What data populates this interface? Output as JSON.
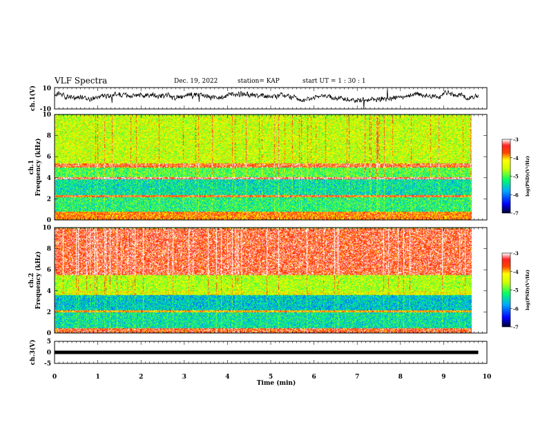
{
  "header": {
    "title": "VLF Spectra",
    "date": "Dec. 19, 2022",
    "station": "station= KAP",
    "start": "start  UT =   1 : 30 : 1"
  },
  "colors": {
    "spectrogram_scale": [
      "#000033",
      "#0000ff",
      "#00aaff",
      "#00ff66",
      "#ccff00",
      "#ffff00",
      "#ff4400",
      "#ff2222",
      "#ffffff"
    ],
    "trace": "#000000"
  },
  "chart_data": [
    {
      "type": "line",
      "panel": "ch1-waveform",
      "ylabel": "ch.1(V)",
      "ylim": [
        -10,
        10
      ],
      "y_ticks": [
        "10",
        "-10"
      ],
      "x_range_min": [
        0,
        9.8
      ],
      "description_values": {
        "typical_level_V": 2,
        "noise_amplitude_V": 4
      }
    },
    {
      "type": "heatmap",
      "panel": "ch1-spectrogram",
      "ylabel": "Frequency (kHz)",
      "ylabel_prefix": "ch.1",
      "y_ticks": [
        "0",
        "2",
        "4",
        "6",
        "8",
        "10"
      ],
      "ylim_kHz": [
        0,
        10
      ],
      "x_range_min": [
        0,
        9.8
      ],
      "colorbar": {
        "label": "log(PSD)(V²/Hz)",
        "ticks": [
          "-3",
          "-4",
          "-5",
          "-6",
          "-7"
        ],
        "range": [
          -7,
          -3
        ]
      },
      "bands": [
        {
          "f_kHz": [
            0,
            0.8
          ],
          "level": -3.8
        },
        {
          "f_kHz": [
            0.8,
            2.2
          ],
          "level": -5.2
        },
        {
          "f_kHz": [
            2.2,
            2.4
          ],
          "level": -3.6
        },
        {
          "f_kHz": [
            2.4,
            3.9
          ],
          "level": -5.4
        },
        {
          "f_kHz": [
            3.9,
            4.1
          ],
          "level": -3.2
        },
        {
          "f_kHz": [
            4.1,
            5.0
          ],
          "level": -5.0
        },
        {
          "f_kHz": [
            5.0,
            5.4
          ],
          "level": -3.5
        },
        {
          "f_kHz": [
            5.4,
            10
          ],
          "level": -4.5
        }
      ]
    },
    {
      "type": "heatmap",
      "panel": "ch2-spectrogram",
      "ylabel": "Frequency (kHz)",
      "ylabel_prefix": "ch.2",
      "y_ticks": [
        "0",
        "2",
        "4",
        "6",
        "8",
        "10"
      ],
      "ylim_kHz": [
        0,
        10
      ],
      "x_range_min": [
        0,
        9.8
      ],
      "colorbar": {
        "label": "log(PSD)(V²/Hz)",
        "ticks": [
          "-3",
          "-4",
          "-5",
          "-6",
          "-7"
        ],
        "range": [
          -7,
          -3
        ]
      },
      "bands": [
        {
          "f_kHz": [
            0,
            0.5
          ],
          "level": -3.5
        },
        {
          "f_kHz": [
            0.5,
            2.0
          ],
          "level": -5.4
        },
        {
          "f_kHz": [
            2.0,
            2.2
          ],
          "level": -4.0
        },
        {
          "f_kHz": [
            2.2,
            3.6
          ],
          "level": -5.6
        },
        {
          "f_kHz": [
            3.6,
            4.0
          ],
          "level": -4.4
        },
        {
          "f_kHz": [
            4.0,
            5.5
          ],
          "level": -4.6
        },
        {
          "f_kHz": [
            5.5,
            10
          ],
          "level": -3.4
        }
      ]
    },
    {
      "type": "line",
      "panel": "ch3-waveform",
      "ylabel": "ch.3(V)",
      "ylim": [
        -5,
        5
      ],
      "y_ticks": [
        "5",
        "0",
        "-5"
      ],
      "x_range_min": [
        0,
        9.8
      ],
      "description_values": {
        "typical_level_V": 0
      }
    }
  ],
  "x_axis": {
    "label": "Time (min)",
    "ticks": [
      "0",
      "1",
      "2",
      "3",
      "4",
      "5",
      "6",
      "7",
      "8",
      "9",
      "10"
    ],
    "xlim": [
      0,
      10
    ]
  }
}
